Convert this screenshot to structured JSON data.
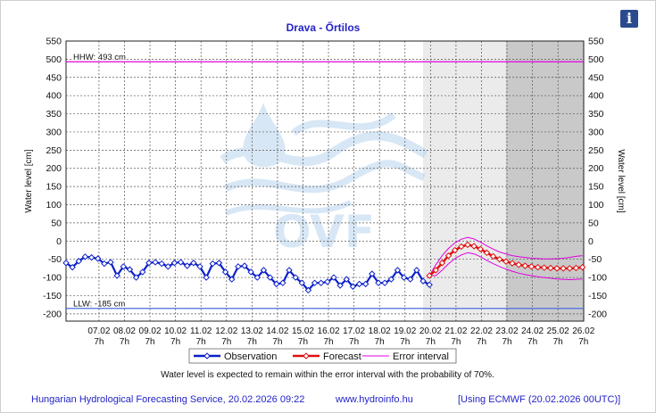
{
  "title": "Drava - Őrtilos",
  "info_icon": "info-icon",
  "footer": {
    "left": "Hungarian Hydrological Forecasting Service, 20.02.2026 09:22",
    "middle": "www.hydroinfo.hu",
    "right": "[Using ECMWF (20.02.2026  00UTC)]"
  },
  "note": "Water level is expected to remain within the error interval with the probability of 70%.",
  "chart_data": {
    "type": "line",
    "title": "Drava - Őrtilos",
    "ylabel_left": "Water level [cm]",
    "ylabel_right": "Water level [cm]",
    "ylim": [
      -220,
      550
    ],
    "yticks": [
      550,
      500,
      450,
      400,
      350,
      300,
      250,
      200,
      150,
      100,
      50,
      0,
      -50,
      -100,
      -150,
      -200
    ],
    "xlim": [
      "06.02 0h",
      "26.02 7h"
    ],
    "xtick_dates": [
      "07.02",
      "08.02",
      "09.02",
      "10.02",
      "11.02",
      "12.02",
      "13.02",
      "14.02",
      "15.02",
      "16.02",
      "17.02",
      "18.02",
      "19.02",
      "20.02",
      "21.02",
      "22.02",
      "23.02",
      "24.02",
      "25.02",
      "26.02"
    ],
    "xtick_hour": "7h",
    "grid": true,
    "reference_lines": [
      {
        "label": "HHW: 493 cm",
        "value": 493,
        "color": "#e000e0"
      },
      {
        "label": "LLW: -185 cm",
        "value": -185,
        "color": "#4a6ee0"
      }
    ],
    "shaded_regions": [
      {
        "from_day": 20.0,
        "to_day": 23.25,
        "color": "#ebebeb"
      },
      {
        "from_day": 23.25,
        "to_day": 26.3,
        "color": "#c9c9c9"
      }
    ],
    "series": [
      {
        "name": "Observation",
        "color": "#0b1fc9",
        "marker": "diamond",
        "points": [
          [
            6.0,
            -60
          ],
          [
            6.25,
            -72
          ],
          [
            6.5,
            -55
          ],
          [
            6.75,
            -43
          ],
          [
            7.0,
            -45
          ],
          [
            7.25,
            -48
          ],
          [
            7.5,
            -62
          ],
          [
            7.75,
            -58
          ],
          [
            8.0,
            -95
          ],
          [
            8.25,
            -70
          ],
          [
            8.5,
            -78
          ],
          [
            8.75,
            -100
          ],
          [
            9.0,
            -85
          ],
          [
            9.25,
            -60
          ],
          [
            9.5,
            -58
          ],
          [
            9.75,
            -62
          ],
          [
            10.0,
            -70
          ],
          [
            10.25,
            -60
          ],
          [
            10.5,
            -58
          ],
          [
            10.75,
            -68
          ],
          [
            11.0,
            -60
          ],
          [
            11.25,
            -70
          ],
          [
            11.5,
            -100
          ],
          [
            11.75,
            -62
          ],
          [
            12.0,
            -60
          ],
          [
            12.25,
            -85
          ],
          [
            12.5,
            -105
          ],
          [
            12.75,
            -70
          ],
          [
            13.0,
            -68
          ],
          [
            13.25,
            -85
          ],
          [
            13.5,
            -100
          ],
          [
            13.75,
            -80
          ],
          [
            14.0,
            -100
          ],
          [
            14.25,
            -118
          ],
          [
            14.5,
            -115
          ],
          [
            14.75,
            -80
          ],
          [
            15.0,
            -100
          ],
          [
            15.25,
            -115
          ],
          [
            15.5,
            -135
          ],
          [
            15.75,
            -115
          ],
          [
            16.0,
            -115
          ],
          [
            16.25,
            -112
          ],
          [
            16.5,
            -100
          ],
          [
            16.75,
            -122
          ],
          [
            17.0,
            -105
          ],
          [
            17.25,
            -125
          ],
          [
            17.5,
            -118
          ],
          [
            17.75,
            -118
          ],
          [
            18.0,
            -90
          ],
          [
            18.25,
            -115
          ],
          [
            18.5,
            -115
          ],
          [
            18.75,
            -105
          ],
          [
            19.0,
            -80
          ],
          [
            19.25,
            -100
          ],
          [
            19.5,
            -105
          ],
          [
            19.75,
            -80
          ],
          [
            20.0,
            -110
          ],
          [
            20.25,
            -120
          ]
        ]
      },
      {
        "name": "Forecast",
        "color": "#e01010",
        "marker": "diamond",
        "points": [
          [
            20.25,
            -95
          ],
          [
            20.5,
            -80
          ],
          [
            20.75,
            -60
          ],
          [
            21.0,
            -40
          ],
          [
            21.25,
            -25
          ],
          [
            21.5,
            -15
          ],
          [
            21.75,
            -10
          ],
          [
            22.0,
            -14
          ],
          [
            22.25,
            -22
          ],
          [
            22.5,
            -32
          ],
          [
            22.75,
            -42
          ],
          [
            23.0,
            -50
          ],
          [
            23.25,
            -56
          ],
          [
            23.5,
            -61
          ],
          [
            23.75,
            -65
          ],
          [
            24.0,
            -68
          ],
          [
            24.25,
            -70
          ],
          [
            24.5,
            -72
          ],
          [
            24.75,
            -73
          ],
          [
            25.0,
            -74
          ],
          [
            25.25,
            -75
          ],
          [
            25.5,
            -75
          ],
          [
            25.75,
            -75
          ],
          [
            26.0,
            -74
          ],
          [
            26.25,
            -72
          ]
        ]
      },
      {
        "name": "Error interval",
        "color": "#e000e0",
        "upper": [
          [
            20.25,
            -95
          ],
          [
            20.5,
            -65
          ],
          [
            20.75,
            -40
          ],
          [
            21.0,
            -20
          ],
          [
            21.25,
            -5
          ],
          [
            21.5,
            5
          ],
          [
            21.75,
            10
          ],
          [
            22.0,
            6
          ],
          [
            22.25,
            -3
          ],
          [
            22.5,
            -13
          ],
          [
            22.75,
            -22
          ],
          [
            23.0,
            -30
          ],
          [
            23.25,
            -35
          ],
          [
            23.5,
            -40
          ],
          [
            23.75,
            -43
          ],
          [
            24.0,
            -45
          ],
          [
            24.25,
            -47
          ],
          [
            24.5,
            -48
          ],
          [
            24.75,
            -49
          ],
          [
            25.0,
            -49
          ],
          [
            25.25,
            -48
          ],
          [
            25.5,
            -47
          ],
          [
            25.75,
            -45
          ],
          [
            26.0,
            -42
          ],
          [
            26.25,
            -40
          ]
        ],
        "lower": [
          [
            20.25,
            -95
          ],
          [
            20.5,
            -95
          ],
          [
            20.75,
            -80
          ],
          [
            21.0,
            -62
          ],
          [
            21.25,
            -48
          ],
          [
            21.5,
            -38
          ],
          [
            21.75,
            -32
          ],
          [
            22.0,
            -35
          ],
          [
            22.25,
            -43
          ],
          [
            22.5,
            -53
          ],
          [
            22.75,
            -62
          ],
          [
            23.0,
            -70
          ],
          [
            23.25,
            -77
          ],
          [
            23.5,
            -83
          ],
          [
            23.75,
            -88
          ],
          [
            24.0,
            -92
          ],
          [
            24.25,
            -95
          ],
          [
            24.5,
            -98
          ],
          [
            24.75,
            -100
          ],
          [
            25.0,
            -102
          ],
          [
            25.25,
            -104
          ],
          [
            25.5,
            -105
          ],
          [
            25.75,
            -106
          ],
          [
            26.0,
            -105
          ],
          [
            26.25,
            -104
          ]
        ]
      }
    ],
    "legend": [
      "Observation",
      "Forecast",
      "Error interval"
    ],
    "legend_position": "bottom-center"
  }
}
